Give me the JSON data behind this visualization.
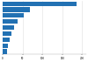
{
  "values": [
    185,
    68,
    52,
    38,
    28,
    22,
    18,
    14,
    11
  ],
  "bar_color": "#2271b3",
  "background_color": "#ffffff",
  "grid_color": "#dddddd",
  "xlim": [
    0,
    210
  ],
  "xticks": [
    0,
    50,
    100,
    150,
    200
  ],
  "bar_height": 0.75
}
